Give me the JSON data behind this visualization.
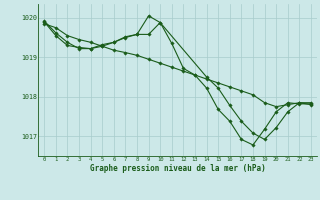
{
  "title": "Graphe pression niveau de la mer (hPa)",
  "bg_color": "#cce8e8",
  "line_color": "#1a5c1a",
  "grid_color": "#a8cccc",
  "xlim": [
    -0.5,
    23.5
  ],
  "ylim": [
    1016.5,
    1020.35
  ],
  "yticks": [
    1017,
    1018,
    1019,
    1020
  ],
  "xticks": [
    0,
    1,
    2,
    3,
    4,
    5,
    6,
    7,
    8,
    9,
    10,
    11,
    12,
    13,
    14,
    15,
    16,
    17,
    18,
    19,
    20,
    21,
    22,
    23
  ],
  "series": [
    {
      "x": [
        0,
        1,
        2,
        3,
        4,
        5,
        6,
        7,
        8,
        9,
        10,
        11,
        12,
        13,
        14,
        15,
        16,
        17,
        18,
        19,
        20,
        21,
        22,
        23
      ],
      "y": [
        1019.85,
        1019.75,
        1019.55,
        1019.45,
        1019.38,
        1019.28,
        1019.18,
        1019.12,
        1019.05,
        1018.95,
        1018.85,
        1018.75,
        1018.65,
        1018.55,
        1018.45,
        1018.35,
        1018.25,
        1018.15,
        1018.05,
        1017.85,
        1017.75,
        1017.8,
        1017.85,
        1017.8
      ]
    },
    {
      "x": [
        0,
        1,
        2,
        3,
        4,
        5,
        6,
        7,
        8,
        9,
        10,
        11,
        12,
        13,
        14,
        15,
        16,
        17,
        18,
        19,
        20,
        21,
        22,
        23
      ],
      "y": [
        1019.9,
        1019.55,
        1019.3,
        1019.25,
        1019.22,
        1019.28,
        1019.38,
        1019.5,
        1019.58,
        1020.05,
        1019.88,
        1019.35,
        1018.72,
        1018.55,
        1018.22,
        1017.68,
        1017.38,
        1016.92,
        1016.78,
        1017.18,
        1017.62,
        1017.85,
        1017.82,
        1017.82
      ]
    },
    {
      "x": [
        0,
        1,
        2,
        3,
        4,
        5,
        6,
        7,
        8,
        9,
        10,
        14,
        15,
        16,
        17,
        18,
        19,
        20,
        21,
        22,
        23
      ],
      "y": [
        1019.92,
        1019.62,
        1019.38,
        1019.22,
        1019.22,
        1019.32,
        1019.38,
        1019.52,
        1019.58,
        1019.58,
        1019.88,
        1018.5,
        1018.22,
        1017.78,
        1017.38,
        1017.08,
        1016.92,
        1017.22,
        1017.62,
        1017.85,
        1017.85
      ]
    }
  ]
}
